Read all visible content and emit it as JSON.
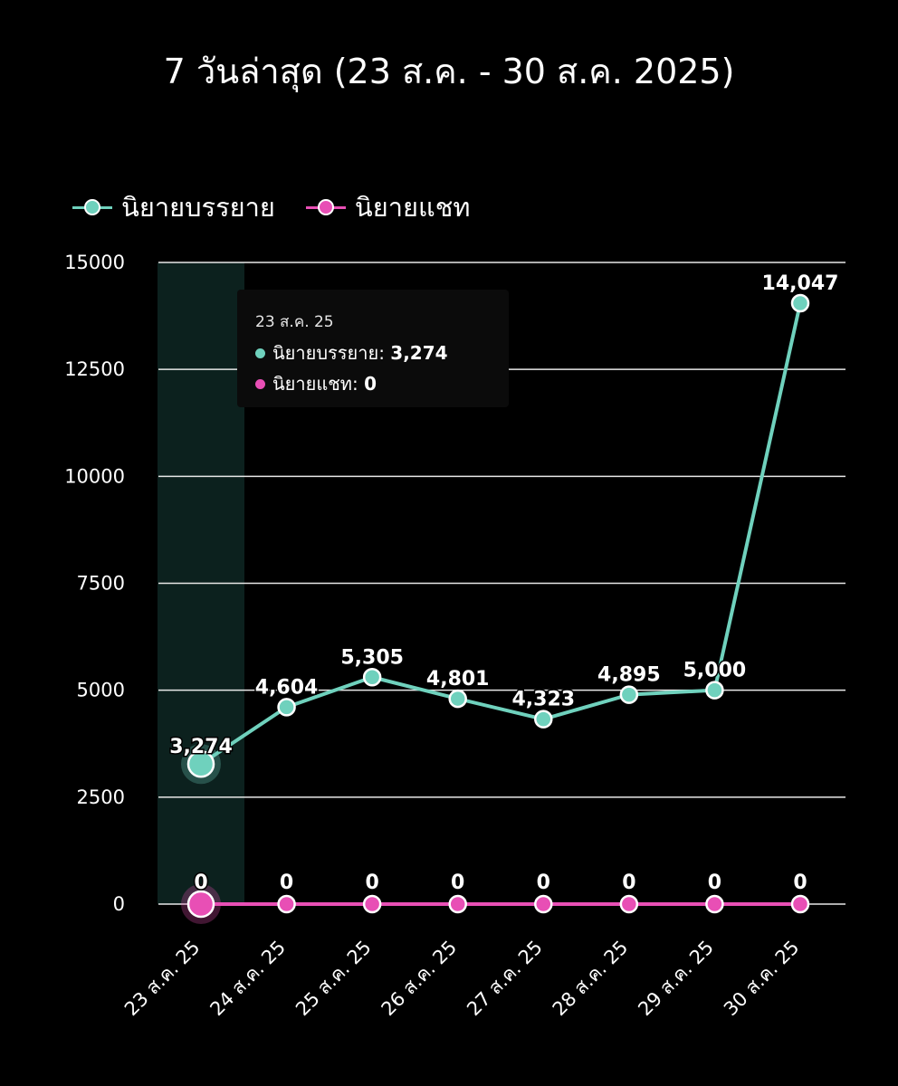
{
  "chart_data": {
    "type": "line",
    "title": "7 วันล่าสุด (23 ส.ค. - 30 ส.ค. 2025)",
    "categories": [
      "23 ส.ค. 25",
      "24 ส.ค. 25",
      "25 ส.ค. 25",
      "26 ส.ค. 25",
      "27 ส.ค. 25",
      "28 ส.ค. 25",
      "29 ส.ค. 25",
      "30 ส.ค. 25"
    ],
    "series": [
      {
        "name": "นิยายบรรยาย",
        "color": "#6fd1bd",
        "values": [
          3274,
          4604,
          5305,
          4801,
          4323,
          4895,
          5000,
          14047
        ],
        "labels": [
          "3,274",
          "4,604",
          "5,305",
          "4,801",
          "4,323",
          "4,895",
          "5,000",
          "14,047"
        ]
      },
      {
        "name": "นิยายแชท",
        "color": "#e84fb5",
        "values": [
          0,
          0,
          0,
          0,
          0,
          0,
          0,
          0
        ],
        "labels": [
          "0",
          "0",
          "0",
          "0",
          "0",
          "0",
          "0",
          "0"
        ]
      }
    ],
    "yticks": [
      "0",
      "2500",
      "5000",
      "7500",
      "10000",
      "12500",
      "15000"
    ],
    "ylim": [
      0,
      15000
    ],
    "xlabel": "",
    "ylabel": "",
    "grid": true,
    "legend": "top-left",
    "highlight_index": 0,
    "tooltip": {
      "date": "23 ส.ค. 25",
      "rows": [
        {
          "label": "นิยายบรรยาย: ",
          "value": "3,274",
          "color": "#6fd1bd"
        },
        {
          "label": "นิยายแชท: ",
          "value": "0",
          "color": "#e84fb5"
        }
      ]
    }
  }
}
